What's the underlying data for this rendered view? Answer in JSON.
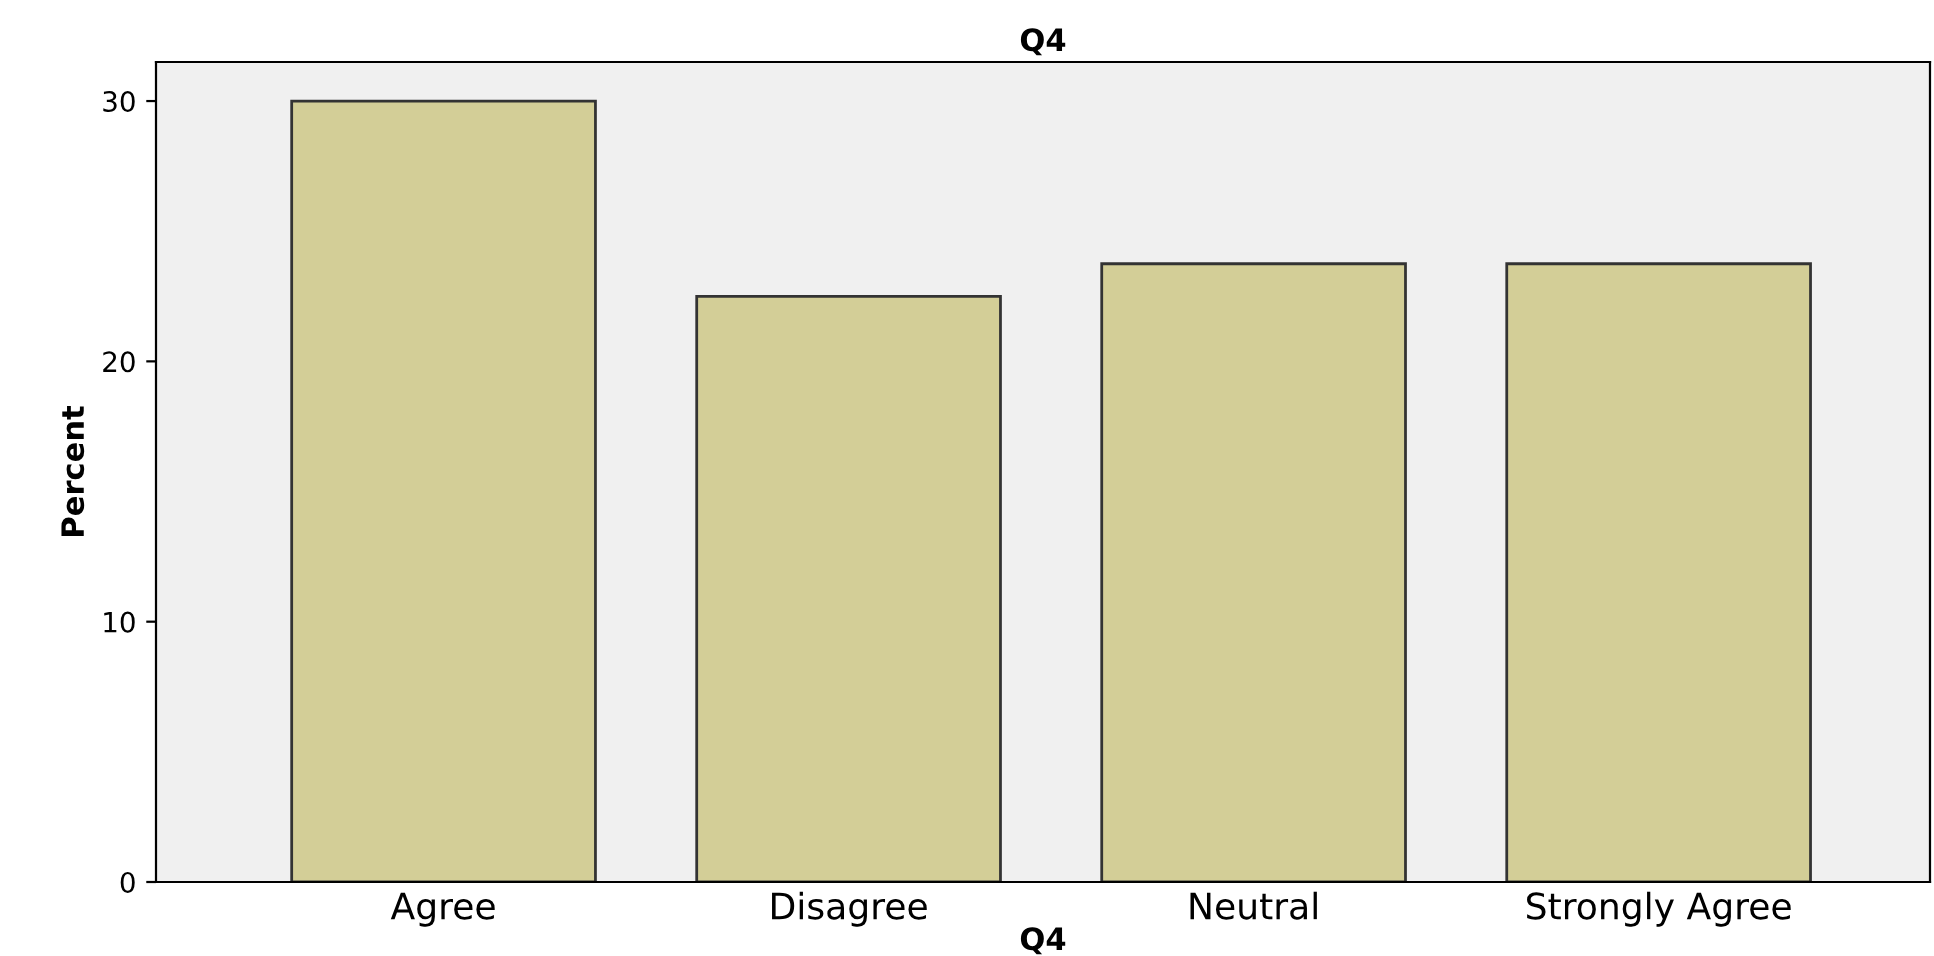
{
  "chart_data": {
    "type": "bar",
    "title": "Q4",
    "xlabel": "Q4",
    "ylabel": "Percent",
    "categories": [
      "Agree",
      "Disagree",
      "Neutral",
      "Strongly Agree"
    ],
    "values": [
      30,
      22.5,
      23.75,
      23.75
    ],
    "color": "#d3ce97",
    "ylim": [
      0,
      31.5
    ],
    "yticks": [
      0,
      10,
      20,
      30
    ],
    "grid": false,
    "legend": false
  }
}
